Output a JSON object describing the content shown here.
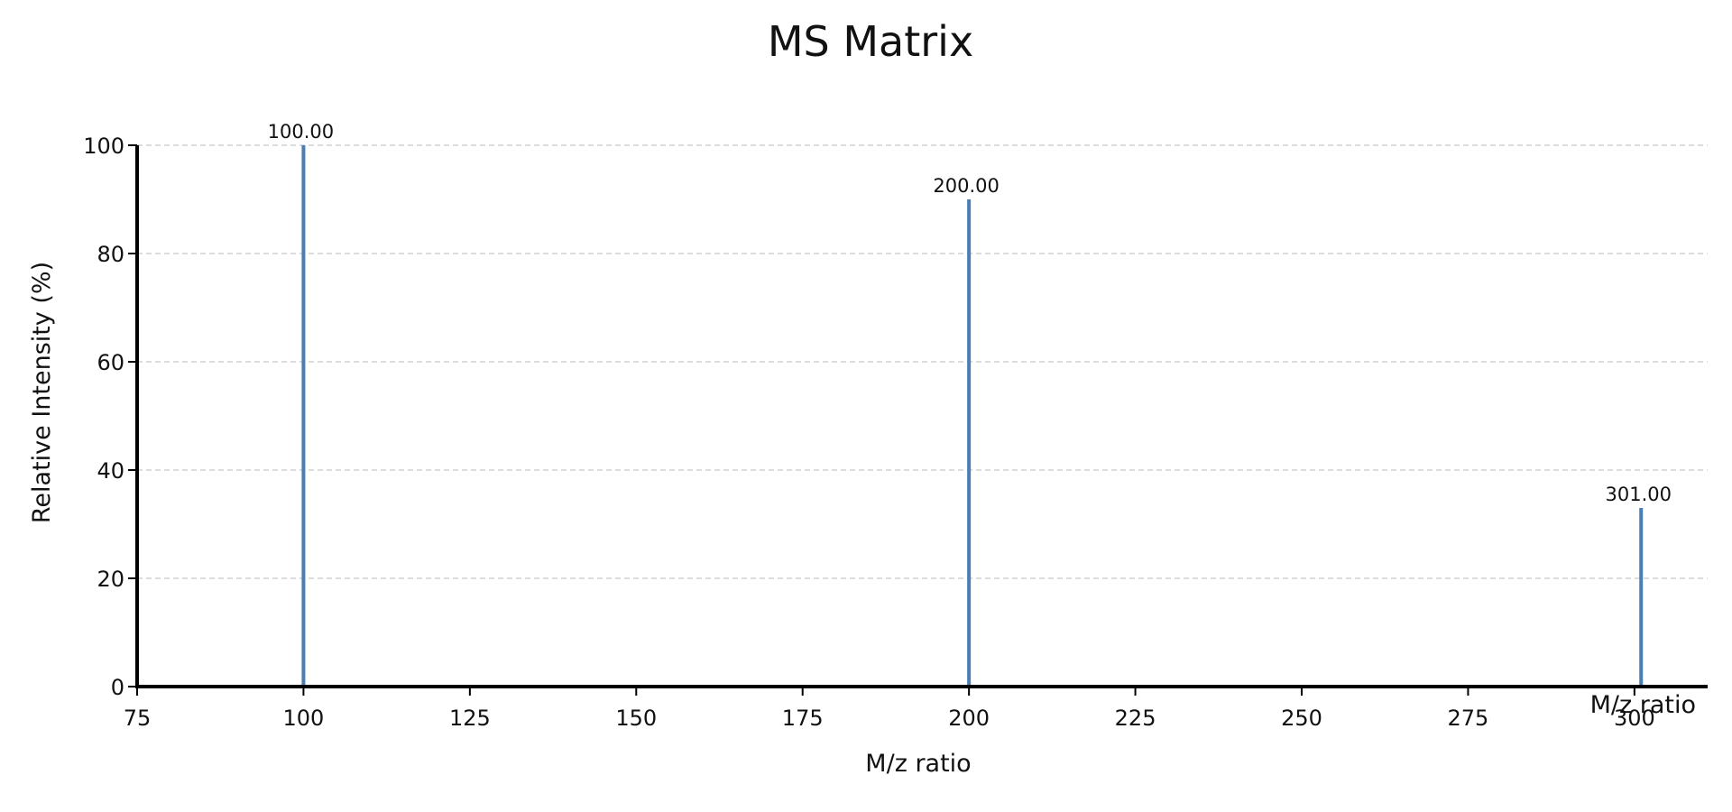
{
  "chart_data": {
    "type": "bar",
    "title": "MS Matrix",
    "xlabel": "M/z ratio",
    "xlabel_end": "M/z ratio",
    "ylabel": "Relative Intensity (%)",
    "xlim": [
      75,
      311
    ],
    "ylim": [
      0,
      100
    ],
    "x_ticks": [
      75,
      100,
      125,
      150,
      175,
      200,
      225,
      250,
      275,
      300
    ],
    "y_ticks": [
      0,
      20,
      40,
      60,
      80,
      100
    ],
    "grid": true,
    "grid_axis": "y",
    "bar_color": "#4a7fb5",
    "peaks": [
      {
        "x": 100,
        "y": 100,
        "label": "100.00"
      },
      {
        "x": 200,
        "y": 90,
        "label": "200.00"
      },
      {
        "x": 301,
        "y": 33,
        "label": "301.00"
      }
    ]
  }
}
